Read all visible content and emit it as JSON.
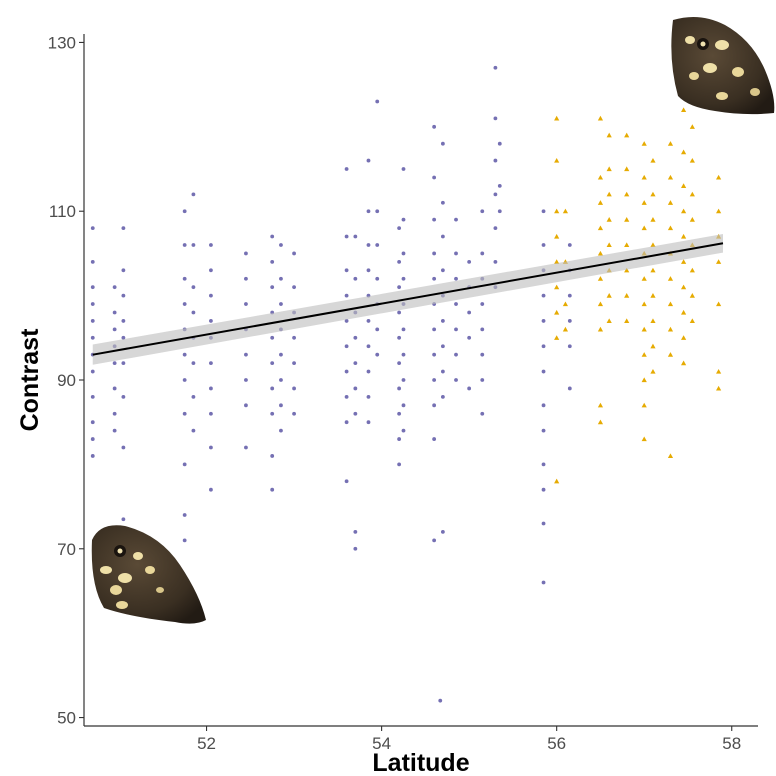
{
  "chart_data": {
    "type": "scatter",
    "title": "",
    "xlabel": "Latitude",
    "ylabel": "Contrast",
    "xlim": [
      50.6,
      58.3
    ],
    "ylim": [
      49,
      131
    ],
    "xticks": [
      52,
      54,
      56,
      58
    ],
    "yticks": [
      50,
      70,
      90,
      110,
      130
    ],
    "grid": false,
    "legend": "none",
    "colors": {
      "purple": "#7570b3",
      "orange": "#e6ab02",
      "line": "#000000",
      "band": "#bdbdbd"
    },
    "fit": {
      "x": [
        50.7,
        57.9
      ],
      "y": [
        93.0,
        106.2
      ],
      "ci_halfwidth": [
        1.2,
        1.1
      ]
    },
    "series": [
      {
        "color": "#7570b3",
        "marker": "circle",
        "points": [
          [
            50.7,
            108
          ],
          [
            50.7,
            104
          ],
          [
            50.7,
            101
          ],
          [
            50.7,
            99
          ],
          [
            50.7,
            97
          ],
          [
            50.7,
            95
          ],
          [
            50.7,
            93
          ],
          [
            50.7,
            91
          ],
          [
            50.7,
            88
          ],
          [
            50.7,
            85
          ],
          [
            50.7,
            83
          ],
          [
            50.7,
            81
          ],
          [
            50.95,
            101
          ],
          [
            50.95,
            98
          ],
          [
            50.95,
            96
          ],
          [
            50.95,
            94
          ],
          [
            50.95,
            92
          ],
          [
            50.95,
            89
          ],
          [
            50.95,
            86
          ],
          [
            50.95,
            84
          ],
          [
            51.05,
            108
          ],
          [
            51.05,
            103
          ],
          [
            51.05,
            100
          ],
          [
            51.05,
            97
          ],
          [
            51.05,
            95
          ],
          [
            51.05,
            92
          ],
          [
            51.05,
            88
          ],
          [
            51.05,
            82
          ],
          [
            51.05,
            73.5
          ],
          [
            51.75,
            110
          ],
          [
            51.75,
            106
          ],
          [
            51.75,
            102
          ],
          [
            51.75,
            99
          ],
          [
            51.75,
            96
          ],
          [
            51.75,
            93
          ],
          [
            51.75,
            90
          ],
          [
            51.75,
            86
          ],
          [
            51.75,
            80
          ],
          [
            51.75,
            74
          ],
          [
            51.75,
            71
          ],
          [
            51.85,
            112
          ],
          [
            51.85,
            106
          ],
          [
            51.85,
            101
          ],
          [
            51.85,
            98
          ],
          [
            51.85,
            95
          ],
          [
            51.85,
            92
          ],
          [
            51.85,
            88
          ],
          [
            51.85,
            84
          ],
          [
            52.05,
            106
          ],
          [
            52.05,
            103
          ],
          [
            52.05,
            100
          ],
          [
            52.05,
            97
          ],
          [
            52.05,
            95
          ],
          [
            52.05,
            92
          ],
          [
            52.05,
            89
          ],
          [
            52.05,
            86
          ],
          [
            52.05,
            82
          ],
          [
            52.05,
            77
          ],
          [
            52.45,
            105
          ],
          [
            52.45,
            102
          ],
          [
            52.45,
            99
          ],
          [
            52.45,
            96
          ],
          [
            52.45,
            93
          ],
          [
            52.45,
            90
          ],
          [
            52.45,
            87
          ],
          [
            52.45,
            82
          ],
          [
            52.75,
            107
          ],
          [
            52.75,
            104
          ],
          [
            52.75,
            101
          ],
          [
            52.75,
            98
          ],
          [
            52.75,
            95
          ],
          [
            52.75,
            92
          ],
          [
            52.75,
            89
          ],
          [
            52.75,
            86
          ],
          [
            52.75,
            81
          ],
          [
            52.75,
            77
          ],
          [
            52.85,
            106
          ],
          [
            52.85,
            102
          ],
          [
            52.85,
            99
          ],
          [
            52.85,
            96
          ],
          [
            52.85,
            93
          ],
          [
            52.85,
            90
          ],
          [
            52.85,
            87
          ],
          [
            52.85,
            84
          ],
          [
            53.0,
            105
          ],
          [
            53.0,
            101
          ],
          [
            53.0,
            98
          ],
          [
            53.0,
            95
          ],
          [
            53.0,
            92
          ],
          [
            53.0,
            89
          ],
          [
            53.0,
            86
          ],
          [
            53.6,
            115
          ],
          [
            53.6,
            107
          ],
          [
            53.6,
            103
          ],
          [
            53.6,
            100
          ],
          [
            53.6,
            97
          ],
          [
            53.6,
            94
          ],
          [
            53.6,
            91
          ],
          [
            53.6,
            88
          ],
          [
            53.6,
            85
          ],
          [
            53.6,
            78
          ],
          [
            53.7,
            107
          ],
          [
            53.7,
            102
          ],
          [
            53.7,
            98
          ],
          [
            53.7,
            95
          ],
          [
            53.7,
            92
          ],
          [
            53.7,
            89
          ],
          [
            53.7,
            86
          ],
          [
            53.7,
            72
          ],
          [
            53.7,
            70
          ],
          [
            53.85,
            116
          ],
          [
            53.85,
            110
          ],
          [
            53.85,
            106
          ],
          [
            53.85,
            103
          ],
          [
            53.85,
            100
          ],
          [
            53.85,
            97
          ],
          [
            53.85,
            94
          ],
          [
            53.85,
            91
          ],
          [
            53.85,
            88
          ],
          [
            53.85,
            85
          ],
          [
            53.95,
            123
          ],
          [
            53.95,
            110
          ],
          [
            53.95,
            106
          ],
          [
            53.95,
            102
          ],
          [
            53.95,
            99
          ],
          [
            53.95,
            96
          ],
          [
            53.95,
            93
          ],
          [
            54.2,
            108
          ],
          [
            54.2,
            104
          ],
          [
            54.2,
            101
          ],
          [
            54.2,
            98
          ],
          [
            54.2,
            95
          ],
          [
            54.2,
            92
          ],
          [
            54.2,
            89
          ],
          [
            54.2,
            86
          ],
          [
            54.2,
            83
          ],
          [
            54.2,
            80
          ],
          [
            54.25,
            115
          ],
          [
            54.25,
            109
          ],
          [
            54.25,
            105
          ],
          [
            54.25,
            102
          ],
          [
            54.25,
            99
          ],
          [
            54.25,
            96
          ],
          [
            54.25,
            93
          ],
          [
            54.25,
            90
          ],
          [
            54.25,
            87
          ],
          [
            54.25,
            84
          ],
          [
            54.6,
            120
          ],
          [
            54.6,
            114
          ],
          [
            54.6,
            109
          ],
          [
            54.6,
            105
          ],
          [
            54.6,
            102
          ],
          [
            54.6,
            99
          ],
          [
            54.6,
            96
          ],
          [
            54.6,
            93
          ],
          [
            54.6,
            90
          ],
          [
            54.6,
            87
          ],
          [
            54.6,
            83
          ],
          [
            54.6,
            71
          ],
          [
            54.7,
            118
          ],
          [
            54.7,
            111
          ],
          [
            54.7,
            107
          ],
          [
            54.7,
            103
          ],
          [
            54.7,
            100
          ],
          [
            54.7,
            97
          ],
          [
            54.7,
            94
          ],
          [
            54.7,
            91
          ],
          [
            54.7,
            88
          ],
          [
            54.7,
            72
          ],
          [
            54.67,
            52
          ],
          [
            54.85,
            109
          ],
          [
            54.85,
            105
          ],
          [
            54.85,
            102
          ],
          [
            54.85,
            99
          ],
          [
            54.85,
            96
          ],
          [
            54.85,
            93
          ],
          [
            54.85,
            90
          ],
          [
            55.0,
            104
          ],
          [
            55.0,
            101
          ],
          [
            55.0,
            98
          ],
          [
            55.0,
            95
          ],
          [
            55.0,
            89
          ],
          [
            55.15,
            110
          ],
          [
            55.15,
            105
          ],
          [
            55.15,
            102
          ],
          [
            55.15,
            99
          ],
          [
            55.15,
            96
          ],
          [
            55.15,
            93
          ],
          [
            55.15,
            90
          ],
          [
            55.15,
            86
          ],
          [
            55.3,
            127
          ],
          [
            55.3,
            121
          ],
          [
            55.3,
            116
          ],
          [
            55.3,
            112
          ],
          [
            55.3,
            108
          ],
          [
            55.3,
            104
          ],
          [
            55.3,
            101
          ],
          [
            55.35,
            118
          ],
          [
            55.35,
            113
          ],
          [
            55.35,
            110
          ],
          [
            55.85,
            110
          ],
          [
            55.85,
            106
          ],
          [
            55.85,
            103
          ],
          [
            55.85,
            100
          ],
          [
            55.85,
            97
          ],
          [
            55.85,
            94
          ],
          [
            55.85,
            91
          ],
          [
            55.85,
            87
          ],
          [
            55.85,
            84
          ],
          [
            55.85,
            80
          ],
          [
            55.85,
            77
          ],
          [
            55.85,
            73
          ],
          [
            55.85,
            66
          ],
          [
            56.15,
            106
          ],
          [
            56.15,
            103
          ],
          [
            56.15,
            100
          ],
          [
            56.15,
            97
          ],
          [
            56.15,
            94
          ],
          [
            56.15,
            89
          ]
        ]
      },
      {
        "color": "#e6ab02",
        "marker": "triangle",
        "points": [
          [
            56.0,
            121
          ],
          [
            56.0,
            116
          ],
          [
            56.0,
            110
          ],
          [
            56.0,
            107
          ],
          [
            56.0,
            104
          ],
          [
            56.0,
            101
          ],
          [
            56.0,
            98
          ],
          [
            56.0,
            95
          ],
          [
            56.0,
            78
          ],
          [
            56.1,
            110
          ],
          [
            56.1,
            104
          ],
          [
            56.1,
            99
          ],
          [
            56.1,
            96
          ],
          [
            56.5,
            121
          ],
          [
            56.5,
            114
          ],
          [
            56.5,
            111
          ],
          [
            56.5,
            108
          ],
          [
            56.5,
            105
          ],
          [
            56.5,
            102
          ],
          [
            56.5,
            99
          ],
          [
            56.5,
            96
          ],
          [
            56.5,
            87
          ],
          [
            56.5,
            85
          ],
          [
            56.6,
            119
          ],
          [
            56.6,
            115
          ],
          [
            56.6,
            112
          ],
          [
            56.6,
            109
          ],
          [
            56.6,
            106
          ],
          [
            56.6,
            103
          ],
          [
            56.6,
            100
          ],
          [
            56.6,
            97
          ],
          [
            56.8,
            119
          ],
          [
            56.8,
            115
          ],
          [
            56.8,
            112
          ],
          [
            56.8,
            109
          ],
          [
            56.8,
            106
          ],
          [
            56.8,
            103
          ],
          [
            56.8,
            100
          ],
          [
            56.8,
            97
          ],
          [
            57.0,
            118
          ],
          [
            57.0,
            114
          ],
          [
            57.0,
            111
          ],
          [
            57.0,
            108
          ],
          [
            57.0,
            105
          ],
          [
            57.0,
            102
          ],
          [
            57.0,
            99
          ],
          [
            57.0,
            96
          ],
          [
            57.0,
            93
          ],
          [
            57.0,
            90
          ],
          [
            57.0,
            87
          ],
          [
            57.0,
            83
          ],
          [
            57.1,
            116
          ],
          [
            57.1,
            112
          ],
          [
            57.1,
            109
          ],
          [
            57.1,
            106
          ],
          [
            57.1,
            103
          ],
          [
            57.1,
            100
          ],
          [
            57.1,
            97
          ],
          [
            57.1,
            94
          ],
          [
            57.1,
            91
          ],
          [
            57.3,
            118
          ],
          [
            57.3,
            114
          ],
          [
            57.3,
            111
          ],
          [
            57.3,
            108
          ],
          [
            57.3,
            105
          ],
          [
            57.3,
            102
          ],
          [
            57.3,
            99
          ],
          [
            57.3,
            96
          ],
          [
            57.3,
            93
          ],
          [
            57.3,
            81
          ],
          [
            57.45,
            122
          ],
          [
            57.45,
            117
          ],
          [
            57.45,
            113
          ],
          [
            57.45,
            110
          ],
          [
            57.45,
            107
          ],
          [
            57.45,
            104
          ],
          [
            57.45,
            101
          ],
          [
            57.45,
            98
          ],
          [
            57.45,
            95
          ],
          [
            57.45,
            92
          ],
          [
            57.55,
            120
          ],
          [
            57.55,
            116
          ],
          [
            57.55,
            112
          ],
          [
            57.55,
            109
          ],
          [
            57.55,
            106
          ],
          [
            57.55,
            103
          ],
          [
            57.55,
            100
          ],
          [
            57.55,
            97
          ],
          [
            57.85,
            114
          ],
          [
            57.85,
            110
          ],
          [
            57.85,
            107
          ],
          [
            57.85,
            104
          ],
          [
            57.85,
            99
          ],
          [
            57.85,
            91
          ],
          [
            57.85,
            89
          ]
        ]
      }
    ]
  }
}
